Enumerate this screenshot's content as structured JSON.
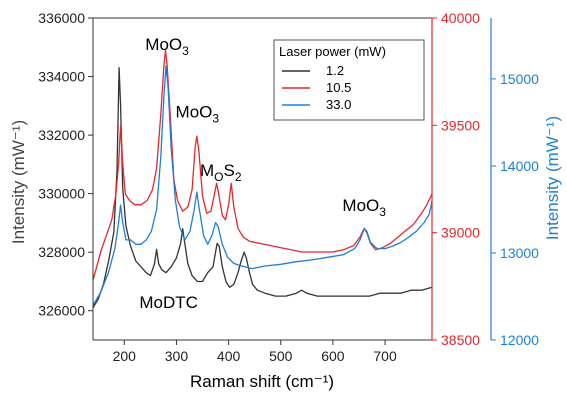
{
  "chart_data": {
    "type": "line",
    "xlabel": "Raman shift (cm⁻¹)",
    "ylabel_left": "Intensity (mW⁻¹)",
    "ylabel_right": "Intensity (mW⁻¹)",
    "xlim": [
      140,
      790
    ],
    "x_ticks": [
      200,
      300,
      400,
      500,
      600,
      700
    ],
    "axes": {
      "left": {
        "color": "#000000",
        "ylim": [
          325000,
          336000
        ],
        "ticks": [
          326000,
          328000,
          330000,
          332000,
          334000,
          336000
        ]
      },
      "right1": {
        "color": "#e8262b",
        "ylim": [
          38500,
          40000
        ],
        "ticks": [
          38500,
          39000,
          39500,
          40000
        ]
      },
      "right2": {
        "color": "#1f7fd6",
        "ylim": [
          12000,
          15700
        ],
        "ticks": [
          12000,
          13000,
          14000,
          15000
        ]
      }
    },
    "legend": {
      "title": "Laser power (mW)",
      "placement": "top-right",
      "entries": [
        {
          "label": "1.2",
          "color": "#333333"
        },
        {
          "label": "10.5",
          "color": "#e8262b"
        },
        {
          "label": "33.0",
          "color": "#1f7fd6"
        }
      ]
    },
    "annotations": [
      {
        "text": "MoO",
        "sub": "3",
        "x": 282,
        "y_axis": "left",
        "y": 334900
      },
      {
        "text": "MoO",
        "sub": "3",
        "x": 340,
        "y_axis": "left",
        "y": 332600
      },
      {
        "text": "M",
        "sub": "O",
        "tail": "S",
        "sub2": "2",
        "x": 385,
        "y_axis": "left",
        "y": 330600
      },
      {
        "text": "MoO",
        "sub": "3",
        "x": 660,
        "y_axis": "left",
        "y": 329400
      },
      {
        "text": "MoDTC",
        "sub": "",
        "x": 285,
        "y_axis": "left",
        "y": 326100
      }
    ],
    "series": [
      {
        "name": "1.2",
        "axis": "left",
        "color": "#333333",
        "points": [
          [
            140,
            326100
          ],
          [
            150,
            326400
          ],
          [
            160,
            326900
          ],
          [
            170,
            327700
          ],
          [
            180,
            328700
          ],
          [
            186,
            330800
          ],
          [
            190,
            334300
          ],
          [
            193,
            333000
          ],
          [
            197,
            330200
          ],
          [
            203,
            328900
          ],
          [
            212,
            328200
          ],
          [
            222,
            327700
          ],
          [
            232,
            327500
          ],
          [
            242,
            327300
          ],
          [
            250,
            327200
          ],
          [
            258,
            327600
          ],
          [
            262,
            328100
          ],
          [
            266,
            327600
          ],
          [
            272,
            327400
          ],
          [
            280,
            327300
          ],
          [
            290,
            327500
          ],
          [
            300,
            327800
          ],
          [
            308,
            328300
          ],
          [
            312,
            328800
          ],
          [
            316,
            328300
          ],
          [
            322,
            327600
          ],
          [
            330,
            327200
          ],
          [
            340,
            327000
          ],
          [
            350,
            327000
          ],
          [
            360,
            327300
          ],
          [
            370,
            327500
          ],
          [
            378,
            328300
          ],
          [
            382,
            328200
          ],
          [
            388,
            327500
          ],
          [
            395,
            327000
          ],
          [
            402,
            326800
          ],
          [
            410,
            326900
          ],
          [
            418,
            327300
          ],
          [
            424,
            327700
          ],
          [
            430,
            328000
          ],
          [
            434,
            327800
          ],
          [
            440,
            327300
          ],
          [
            446,
            326900
          ],
          [
            455,
            326700
          ],
          [
            470,
            326600
          ],
          [
            490,
            326500
          ],
          [
            510,
            326500
          ],
          [
            530,
            326600
          ],
          [
            540,
            326700
          ],
          [
            550,
            326600
          ],
          [
            570,
            326500
          ],
          [
            590,
            326500
          ],
          [
            610,
            326500
          ],
          [
            630,
            326500
          ],
          [
            650,
            326500
          ],
          [
            670,
            326500
          ],
          [
            690,
            326600
          ],
          [
            710,
            326600
          ],
          [
            730,
            326600
          ],
          [
            750,
            326700
          ],
          [
            770,
            326700
          ],
          [
            790,
            326800
          ]
        ]
      },
      {
        "name": "10.5",
        "axis": "right1",
        "color": "#e8262b",
        "points": [
          [
            140,
            38780
          ],
          [
            148,
            38850
          ],
          [
            156,
            38920
          ],
          [
            166,
            38990
          ],
          [
            176,
            39060
          ],
          [
            184,
            39180
          ],
          [
            189,
            39320
          ],
          [
            193,
            39500
          ],
          [
            197,
            39320
          ],
          [
            202,
            39180
          ],
          [
            210,
            39150
          ],
          [
            220,
            39130
          ],
          [
            232,
            39130
          ],
          [
            244,
            39150
          ],
          [
            254,
            39200
          ],
          [
            262,
            39300
          ],
          [
            270,
            39550
          ],
          [
            276,
            39780
          ],
          [
            279,
            39850
          ],
          [
            282,
            39780
          ],
          [
            288,
            39550
          ],
          [
            295,
            39250
          ],
          [
            302,
            39150
          ],
          [
            312,
            39100
          ],
          [
            322,
            39120
          ],
          [
            330,
            39200
          ],
          [
            336,
            39400
          ],
          [
            339,
            39450
          ],
          [
            343,
            39380
          ],
          [
            350,
            39170
          ],
          [
            358,
            39090
          ],
          [
            366,
            39100
          ],
          [
            372,
            39170
          ],
          [
            377,
            39230
          ],
          [
            381,
            39180
          ],
          [
            388,
            39080
          ],
          [
            394,
            39060
          ],
          [
            400,
            39130
          ],
          [
            405,
            39230
          ],
          [
            410,
            39120
          ],
          [
            418,
            39020
          ],
          [
            428,
            38980
          ],
          [
            440,
            38960
          ],
          [
            460,
            38950
          ],
          [
            480,
            38940
          ],
          [
            500,
            38930
          ],
          [
            520,
            38920
          ],
          [
            540,
            38910
          ],
          [
            560,
            38910
          ],
          [
            580,
            38910
          ],
          [
            600,
            38910
          ],
          [
            620,
            38920
          ],
          [
            640,
            38940
          ],
          [
            652,
            38980
          ],
          [
            660,
            39020
          ],
          [
            665,
            39000
          ],
          [
            672,
            38950
          ],
          [
            682,
            38920
          ],
          [
            695,
            38930
          ],
          [
            710,
            38950
          ],
          [
            725,
            38980
          ],
          [
            740,
            39010
          ],
          [
            755,
            39040
          ],
          [
            770,
            39090
          ],
          [
            780,
            39130
          ],
          [
            790,
            39180
          ]
        ]
      },
      {
        "name": "33.0",
        "axis": "right2",
        "color": "#1f7fd6",
        "points": [
          [
            140,
            12400
          ],
          [
            155,
            12550
          ],
          [
            170,
            12780
          ],
          [
            182,
            13050
          ],
          [
            189,
            13350
          ],
          [
            193,
            13550
          ],
          [
            197,
            13350
          ],
          [
            203,
            13150
          ],
          [
            212,
            13150
          ],
          [
            222,
            13100
          ],
          [
            232,
            13100
          ],
          [
            242,
            13150
          ],
          [
            252,
            13250
          ],
          [
            262,
            13500
          ],
          [
            270,
            14100
          ],
          [
            276,
            14800
          ],
          [
            280,
            15150
          ],
          [
            284,
            14900
          ],
          [
            290,
            14200
          ],
          [
            298,
            13600
          ],
          [
            306,
            13300
          ],
          [
            316,
            13150
          ],
          [
            326,
            13250
          ],
          [
            334,
            13500
          ],
          [
            339,
            13700
          ],
          [
            344,
            13500
          ],
          [
            352,
            13200
          ],
          [
            360,
            13100
          ],
          [
            368,
            13200
          ],
          [
            375,
            13350
          ],
          [
            380,
            13300
          ],
          [
            388,
            13100
          ],
          [
            398,
            12950
          ],
          [
            410,
            12880
          ],
          [
            425,
            12850
          ],
          [
            445,
            12820
          ],
          [
            470,
            12850
          ],
          [
            500,
            12870
          ],
          [
            530,
            12900
          ],
          [
            560,
            12920
          ],
          [
            590,
            12950
          ],
          [
            620,
            12980
          ],
          [
            642,
            13050
          ],
          [
            652,
            13150
          ],
          [
            660,
            13280
          ],
          [
            665,
            13250
          ],
          [
            672,
            13120
          ],
          [
            685,
            13050
          ],
          [
            700,
            13050
          ],
          [
            715,
            13080
          ],
          [
            730,
            13120
          ],
          [
            745,
            13180
          ],
          [
            760,
            13250
          ],
          [
            775,
            13350
          ],
          [
            785,
            13450
          ],
          [
            790,
            13600
          ]
        ]
      }
    ]
  }
}
